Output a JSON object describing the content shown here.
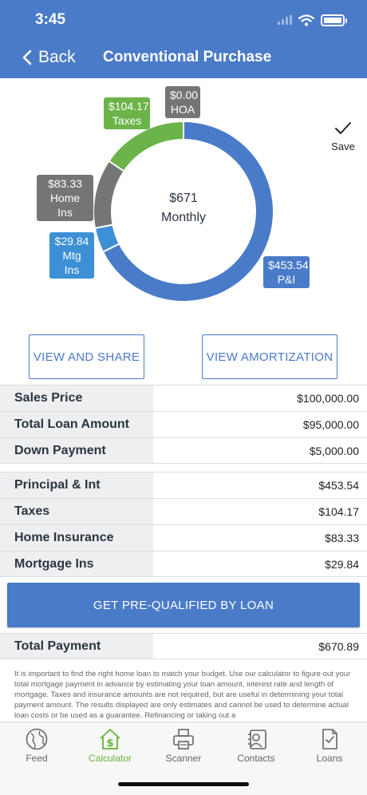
{
  "status": {
    "time": "3:45"
  },
  "nav": {
    "back_label": "Back",
    "title": "Conventional Purchase"
  },
  "colors": {
    "brand": "#4a7bc9",
    "taxes": "#6cb34a",
    "gray": "#757575",
    "mtg": "#3d8fd6",
    "active_tab": "#69b23a"
  },
  "chart_data": {
    "type": "pie",
    "center_amount": "$671",
    "center_label": "Monthly",
    "slices": [
      {
        "name": "P&I",
        "amount_label": "$453.54",
        "value": 453.54,
        "color": "#4a7bc9"
      },
      {
        "name": "Mtg Ins",
        "amount_label": "$29.84",
        "value": 29.84,
        "color": "#3d8fd6"
      },
      {
        "name": "Home Ins",
        "amount_label": "$83.33",
        "value": 83.33,
        "color": "#757575"
      },
      {
        "name": "Taxes",
        "amount_label": "$104.17",
        "value": 104.17,
        "color": "#6cb34a"
      },
      {
        "name": "HOA",
        "amount_label": "$0.00",
        "value": 0,
        "color": "#757575"
      }
    ]
  },
  "save": {
    "label": "Save"
  },
  "buttons": {
    "view_share": "VIEW AND SHARE",
    "view_amortization": "VIEW AMORTIZATION",
    "prequalify": "GET PRE-QUALIFIED BY LOAN"
  },
  "loan": {
    "sales_price": {
      "label": "Sales Price",
      "value": "$100,000.00"
    },
    "total_loan": {
      "label": "Total Loan Amount",
      "value": "$95,000.00"
    },
    "down_payment": {
      "label": "Down Payment",
      "value": "$5,000.00"
    }
  },
  "payment": {
    "principal": {
      "label": "Principal & Int",
      "value": "$453.54"
    },
    "taxes": {
      "label": "Taxes",
      "value": "$104.17"
    },
    "home_ins": {
      "label": "Home Insurance",
      "value": "$83.33"
    },
    "mortgage_ins": {
      "label": "Mortgage Ins",
      "value": "$29.84"
    },
    "total": {
      "label": "Total Payment",
      "value": "$670.89"
    }
  },
  "disclaimer": "It is important to find the right home loan to match your budget. Use our calculator to figure out your total mortgage payment in advance by estimating your loan amount, interest rate and length of mortgage. Taxes and insurance amounts are not required, but are useful in determining your total payment amount. The results displayed are only estimates and cannot be used to determine actual loan costs or be used as a guarantee. Refinancing or taking out a",
  "tabs": [
    {
      "label": "Feed",
      "icon": "globe-icon"
    },
    {
      "label": "Calculator",
      "icon": "calculator-house-icon"
    },
    {
      "label": "Scanner",
      "icon": "printer-icon"
    },
    {
      "label": "Contacts",
      "icon": "contacts-icon"
    },
    {
      "label": "Loans",
      "icon": "document-check-icon"
    }
  ]
}
